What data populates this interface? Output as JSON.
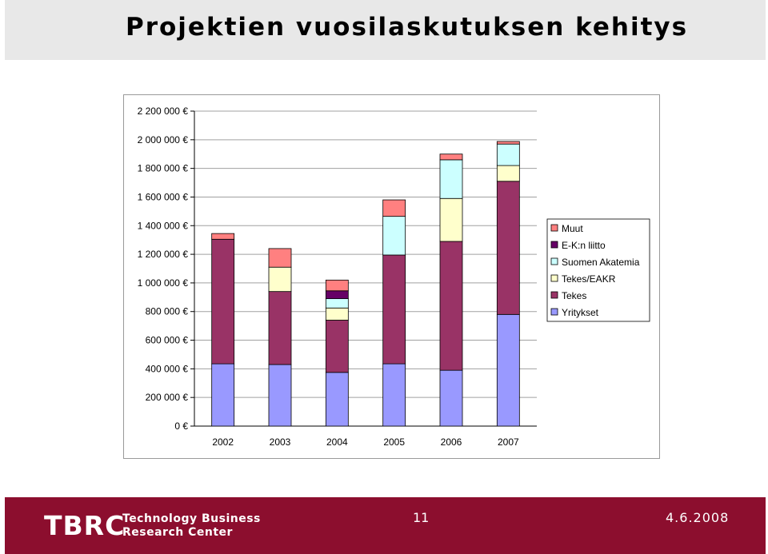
{
  "slide": {
    "title": "Projektien vuosilaskutuksen kehitys"
  },
  "chart_data": {
    "type": "bar",
    "stacked": true,
    "categories": [
      "2002",
      "2003",
      "2004",
      "2005",
      "2006",
      "2007"
    ],
    "series": [
      {
        "name": "Yritykset",
        "color": "#9999ff",
        "values": [
          435000,
          430000,
          375000,
          435000,
          390000,
          780000
        ]
      },
      {
        "name": "Tekes",
        "color": "#993366",
        "values": [
          870000,
          510000,
          365000,
          760000,
          900000,
          930000
        ]
      },
      {
        "name": "Tekes/EAKR",
        "color": "#ffffcc",
        "values": [
          0,
          170000,
          85000,
          0,
          300000,
          110000
        ]
      },
      {
        "name": "Suomen Akatemia",
        "color": "#ccffff",
        "values": [
          0,
          0,
          65000,
          270000,
          270000,
          150000
        ]
      },
      {
        "name": "E-K:n liitto",
        "color": "#660066",
        "values": [
          0,
          0,
          55000,
          0,
          0,
          0
        ]
      },
      {
        "name": "Muut",
        "color": "#ff8080",
        "values": [
          40000,
          130000,
          75000,
          115000,
          40000,
          18000
        ]
      }
    ],
    "legend_order": [
      "Muut",
      "E-K:n liitto",
      "Suomen Akatemia",
      "Tekes/EAKR",
      "Tekes",
      "Yritykset"
    ],
    "y_ticks": [
      "0 €",
      "200 000 €",
      "400 000 €",
      "600 000 €",
      "800 000 €",
      "1 000 000 €",
      "1 200 000 €",
      "1 400 000 €",
      "1 600 000 €",
      "1 800 000 €",
      "2 000 000 €",
      "2 200 000 €"
    ],
    "ylim": [
      0,
      2200000
    ],
    "grid": true,
    "legend_position": "right"
  },
  "footer": {
    "logo": "TBRC",
    "tagline_line1": "Technology Business",
    "tagline_line2": "Research Center",
    "page_number": "11",
    "date": "4.6.2008"
  }
}
